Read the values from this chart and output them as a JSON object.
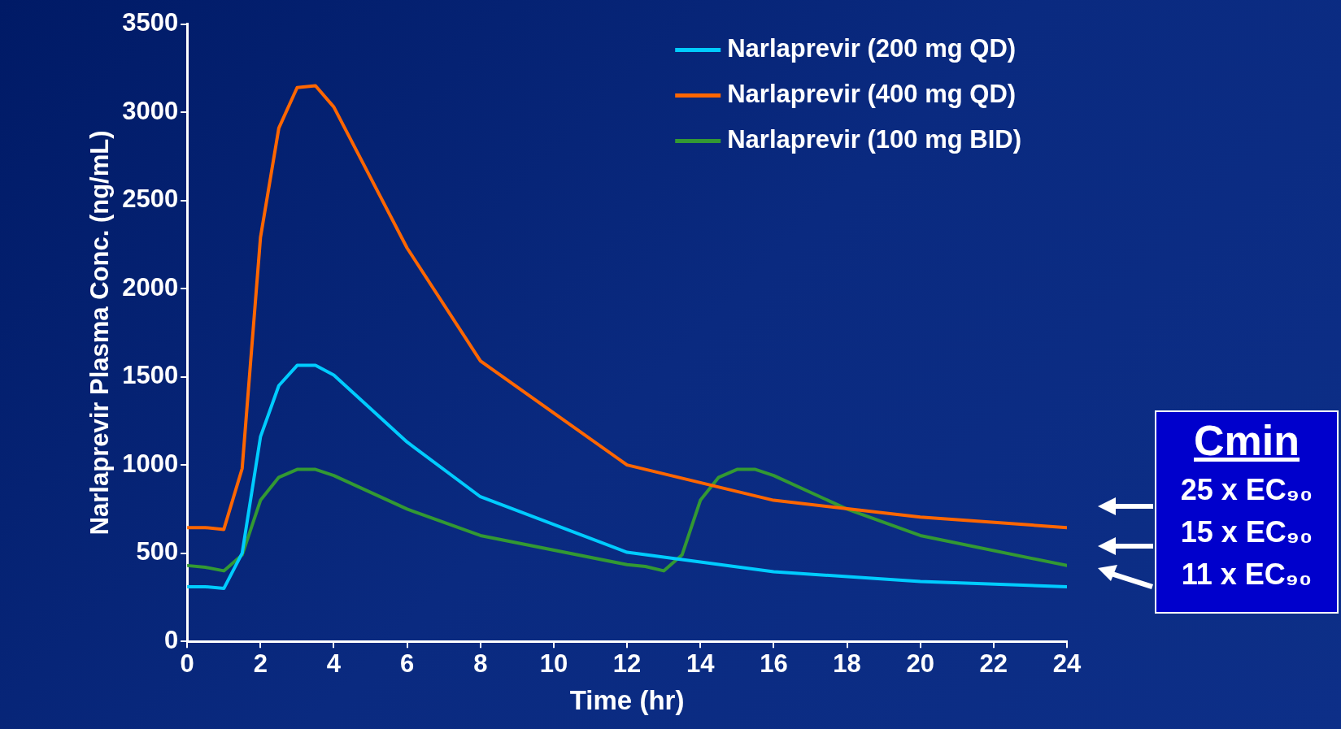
{
  "chart_data": {
    "type": "line",
    "xlabel": "Time (hr)",
    "ylabel": "Narlaprevir Plasma Conc. (ng/mL)",
    "xlim": [
      0,
      24
    ],
    "xticks": [
      0,
      2,
      4,
      6,
      8,
      10,
      12,
      14,
      16,
      18,
      20,
      22,
      24
    ],
    "ylim": [
      0,
      3500
    ],
    "yticks": [
      0,
      500,
      1000,
      1500,
      2000,
      2500,
      3000,
      3500
    ],
    "grid": false,
    "legend": "top right",
    "marker": "none",
    "line_style": "solid",
    "series": [
      {
        "name": "Narlaprevir (200 mg QD)",
        "color": "#00ccff",
        "x": [
          0,
          0.5,
          1,
          1.5,
          2,
          2.5,
          3,
          3.5,
          4,
          6,
          8,
          12,
          16,
          20,
          24
        ],
        "values": [
          310,
          310,
          300,
          500,
          1160,
          1450,
          1565,
          1565,
          1510,
          1130,
          820,
          505,
          395,
          340,
          310
        ]
      },
      {
        "name": "Narlaprevir (400 mg QD)",
        "color": "#ff6600",
        "x": [
          0,
          0.5,
          1,
          1.5,
          2,
          2.5,
          3,
          3.5,
          4,
          6,
          8,
          12,
          16,
          20,
          24
        ],
        "values": [
          645,
          645,
          635,
          980,
          2290,
          2910,
          3140,
          3150,
          3030,
          2230,
          1590,
          1000,
          800,
          705,
          645
        ]
      },
      {
        "name": "Narlaprevir (100 mg BID)",
        "color": "#339933",
        "x": [
          0,
          0.5,
          1,
          1.5,
          2,
          2.5,
          3,
          3.5,
          4,
          6,
          8,
          12,
          12.5,
          13,
          13.5,
          14,
          14.5,
          15,
          15.5,
          16,
          18,
          20,
          24
        ],
        "values": [
          430,
          420,
          400,
          490,
          800,
          930,
          975,
          975,
          940,
          750,
          600,
          435,
          425,
          400,
          490,
          800,
          930,
          975,
          975,
          940,
          750,
          600,
          430
        ]
      }
    ],
    "annotations": [
      "Cmin",
      "25 x EC₉₀",
      "15 x EC₉₀",
      "11 x EC₉₀"
    ]
  }
}
